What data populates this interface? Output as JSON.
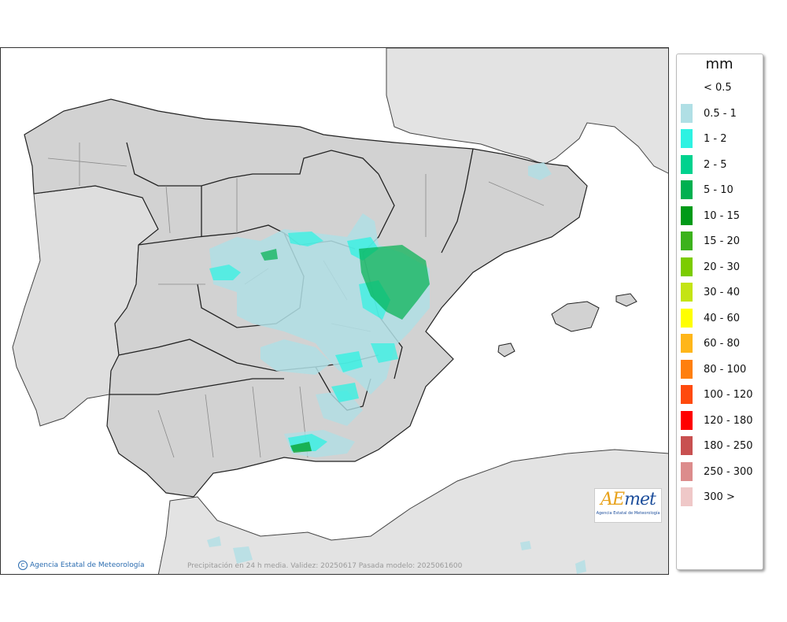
{
  "map": {
    "caption": "Precipitación en 24 h media. Validez: 20250617 Pasada modelo: 2025061600",
    "copyright": "Agencia Estatal de Meteorología",
    "copyright_symbol": "C",
    "logo": {
      "text_a": "A",
      "text_e": "E",
      "text_rest": "met",
      "subtitle": "Agencia Estatal de Meteorología"
    }
  },
  "legend": {
    "unit": "mm",
    "classes": [
      {
        "label": "< 0.5",
        "color": ""
      },
      {
        "label": "0.5 - 1",
        "color": "#b0dfe5"
      },
      {
        "label": "1 - 2",
        "color": "#2ef2e2"
      },
      {
        "label": "2 - 5",
        "color": "#00d28e"
      },
      {
        "label": "5 - 10",
        "color": "#00b050"
      },
      {
        "label": "10 - 15",
        "color": "#009a18"
      },
      {
        "label": "15 - 20",
        "color": "#3cb21c"
      },
      {
        "label": "20 - 30",
        "color": "#7ccc00"
      },
      {
        "label": "30 - 40",
        "color": "#c4e414"
      },
      {
        "label": "40 - 60",
        "color": "#ffff00"
      },
      {
        "label": "60 - 80",
        "color": "#ffb619"
      },
      {
        "label": "80 - 100",
        "color": "#ff7f0e"
      },
      {
        "label": "100 - 120",
        "color": "#ff4a0d"
      },
      {
        "label": "120 - 180",
        "color": "#ff0000"
      },
      {
        "label": "180 - 250",
        "color": "#c85050"
      },
      {
        "label": "250 - 300",
        "color": "#dc8c8c"
      },
      {
        "label": "300 >",
        "color": "#efc8c8"
      }
    ]
  }
}
